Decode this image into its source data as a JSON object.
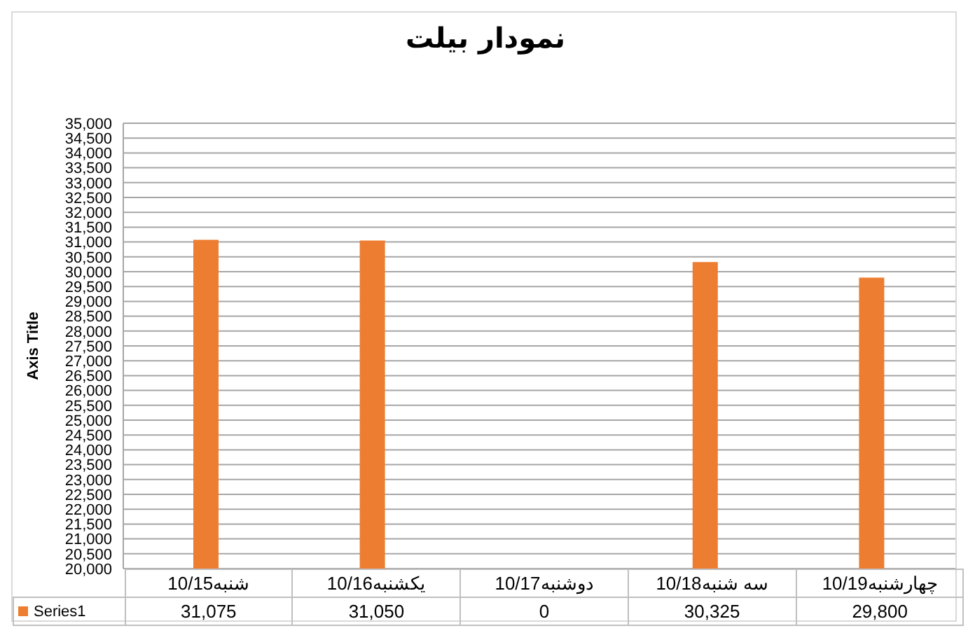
{
  "chart_data": {
    "type": "bar",
    "title": "نمودار بیلت",
    "ylabel": "Axis Title",
    "categories": [
      "10/15شنبه",
      "10/16یکشنبه",
      "10/17دوشنبه",
      "10/18سه شنبه",
      "10/19چهارشنبه"
    ],
    "series": [
      {
        "name": "Series1",
        "color": "#ed7d31",
        "values": [
          31075,
          31050,
          null,
          30325,
          29800
        ],
        "value_labels": [
          "31,075",
          "31,050",
          "0",
          "30,325",
          "29,800"
        ]
      }
    ],
    "ylim": [
      20000,
      35000
    ],
    "yticks": [
      {
        "value": 20000,
        "label": "20,000"
      },
      {
        "value": 20500,
        "label": "20,500"
      },
      {
        "value": 21000,
        "label": "21,000"
      },
      {
        "value": 21500,
        "label": "21,500"
      },
      {
        "value": 22000,
        "label": "22,000"
      },
      {
        "value": 22500,
        "label": "22,500"
      },
      {
        "value": 23000,
        "label": "23,000"
      },
      {
        "value": 23500,
        "label": "23,500"
      },
      {
        "value": 24000,
        "label": "24,000"
      },
      {
        "value": 24500,
        "label": "24,500"
      },
      {
        "value": 25000,
        "label": "25,000"
      },
      {
        "value": 25500,
        "label": "25,500"
      },
      {
        "value": 26000,
        "label": "26,000"
      },
      {
        "value": 26500,
        "label": "26,500"
      },
      {
        "value": 27000,
        "label": "27,000"
      },
      {
        "value": 27500,
        "label": "27,500"
      },
      {
        "value": 28000,
        "label": "28,000"
      },
      {
        "value": 28500,
        "label": "28,500"
      },
      {
        "value": 29000,
        "label": "29,000"
      },
      {
        "value": 29500,
        "label": "29,500"
      },
      {
        "value": 30000,
        "label": "30,000"
      },
      {
        "value": 30500,
        "label": "30,500"
      },
      {
        "value": 31000,
        "label": "31,000"
      },
      {
        "value": 31500,
        "label": "31,500"
      },
      {
        "value": 32000,
        "label": "32,000"
      },
      {
        "value": 32500,
        "label": "32,500"
      },
      {
        "value": 33000,
        "label": "33,000"
      },
      {
        "value": 33500,
        "label": "33,500"
      },
      {
        "value": 34000,
        "label": "34,000"
      },
      {
        "value": 34500,
        "label": "34,500"
      },
      {
        "value": 35000,
        "label": "35,000"
      }
    ],
    "grid": "y",
    "legend": "bottom"
  }
}
